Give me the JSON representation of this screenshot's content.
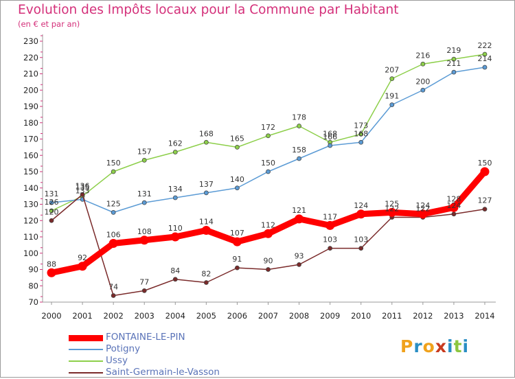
{
  "title": "Evolution des Impôts locaux pour la Commune par Habitant",
  "subtitle": "(en € et par an)",
  "logo": {
    "text": "Proxiti",
    "letters": [
      "P",
      "r",
      "o",
      "x",
      "i",
      "t",
      "i"
    ],
    "colors": [
      "#f0a21c",
      "#2a8ec4",
      "#f0a21c",
      "#c83a1e",
      "#2a8ec4",
      "#8cc63f",
      "#2a8ec4"
    ]
  },
  "chart_data": {
    "type": "line",
    "title": "Evolution des Impôts locaux pour la Commune par Habitant",
    "subtitle": "(en € et par an)",
    "x": [
      2000,
      2001,
      2002,
      2003,
      2004,
      2005,
      2006,
      2007,
      2008,
      2009,
      2010,
      2011,
      2012,
      2013,
      2014
    ],
    "ylim": [
      70,
      230
    ],
    "yticks": [
      70,
      80,
      90,
      100,
      110,
      120,
      130,
      140,
      150,
      160,
      170,
      180,
      190,
      200,
      210,
      220,
      230
    ],
    "grid": false,
    "legend_position": "bottom-left",
    "series": [
      {
        "name": "FONTAINE-LE-PIN",
        "color": "#ff0000",
        "values": [
          88,
          92,
          106,
          108,
          110,
          114,
          107,
          112,
          121,
          117,
          124,
          125,
          124,
          128,
          150
        ]
      },
      {
        "name": "Potigny",
        "color": "#5b9bd5",
        "values": [
          131,
          133,
          125,
          131,
          134,
          137,
          140,
          150,
          158,
          166,
          168,
          191,
          200,
          211,
          214
        ]
      },
      {
        "name": "Ussy",
        "color": "#8dcf4a",
        "values": [
          126,
          135,
          150,
          157,
          162,
          168,
          165,
          172,
          178,
          168,
          173,
          207,
          216,
          219,
          222
        ]
      },
      {
        "name": "Saint-Germain-le-Vasson",
        "color": "#7a2a2a",
        "values": [
          120,
          136,
          74,
          77,
          84,
          82,
          91,
          90,
          93,
          103,
          103,
          122,
          122,
          124,
          127
        ]
      }
    ]
  }
}
